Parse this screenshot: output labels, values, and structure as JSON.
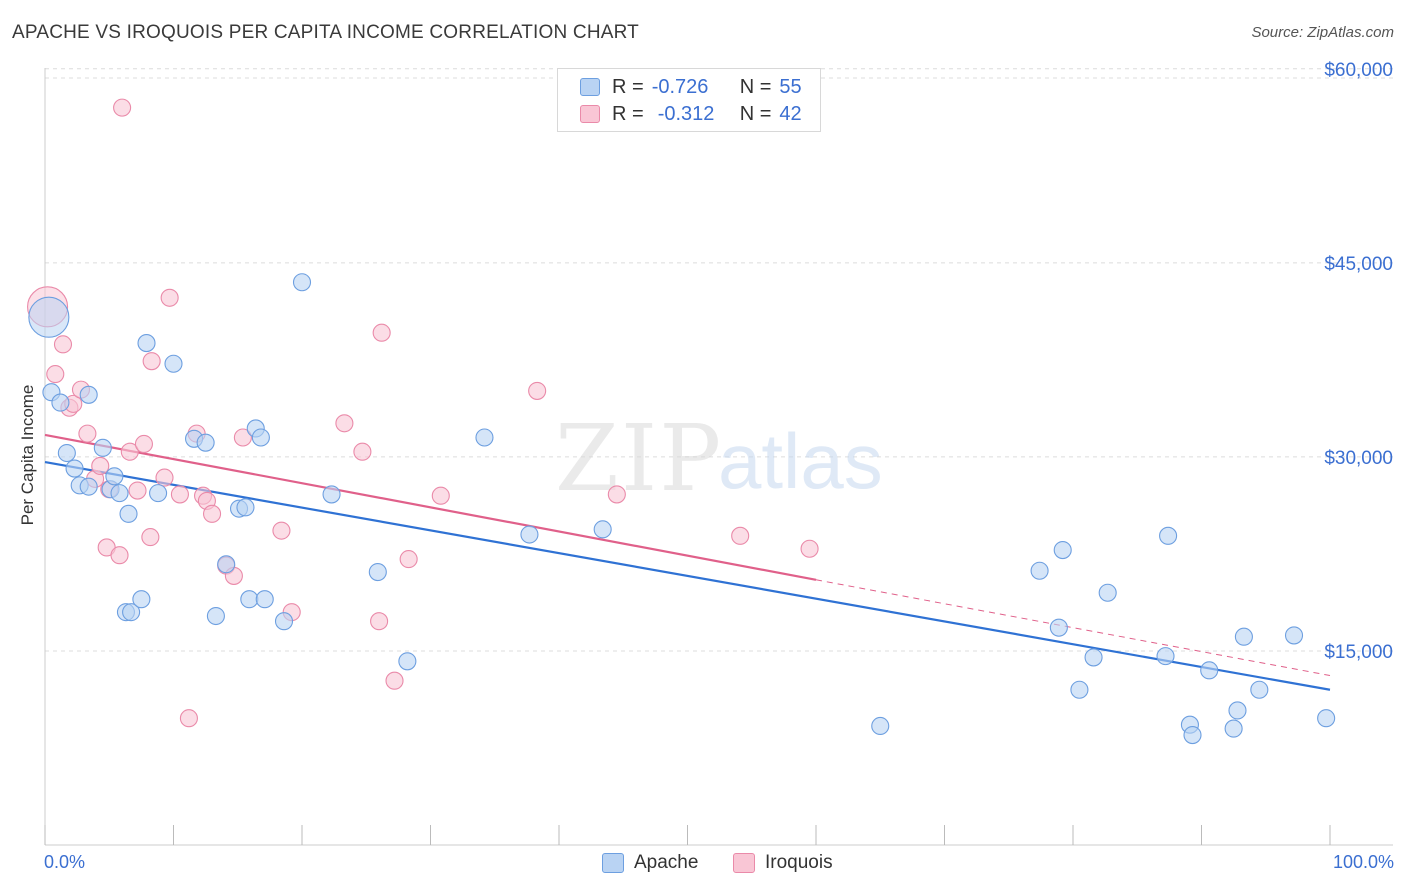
{
  "header": {
    "title": "APACHE VS IROQUOIS PER CAPITA INCOME CORRELATION CHART",
    "source": "Source: ZipAtlas.com"
  },
  "watermark": {
    "zip": "ZIP",
    "atlas": "atlas"
  },
  "colors": {
    "apache_fill": "#b9d3f3",
    "apache_stroke": "#6d9fe0",
    "apache_line": "#2f72d4",
    "iroquois_fill": "#f9c6d5",
    "iroquois_stroke": "#ea8aa9",
    "iroquois_line": "#e0608a",
    "axis_text": "#3b6fd1",
    "grid": "#dcdcdc"
  },
  "legend_top": {
    "rows": [
      {
        "r_label": "R =",
        "r_value": "-0.726",
        "n_label": "N =",
        "n_value": "55"
      },
      {
        "r_label": "R =",
        "r_value": "-0.312",
        "n_label": "N =",
        "n_value": "42"
      }
    ]
  },
  "legend_bottom": {
    "apache": "Apache",
    "iroquois": "Iroquois"
  },
  "chart_data": {
    "type": "scatter",
    "title": "APACHE VS IROQUOIS PER CAPITA INCOME CORRELATION CHART",
    "xlabel": "",
    "ylabel": "Per Capita Income",
    "xlim": [
      0,
      100
    ],
    "ylim": [
      0,
      63000
    ],
    "x_tick_labels": [
      "0.0%",
      "100.0%"
    ],
    "y_ticks": [
      15000,
      30000,
      45000,
      60000
    ],
    "y_tick_labels": [
      "$15,000",
      "$30,000",
      "$45,000",
      "$60,000"
    ],
    "grid": true,
    "legend_position": "top-center",
    "series": [
      {
        "name": "Apache",
        "r": -0.726,
        "n": 55,
        "trend": {
          "x": [
            0,
            100
          ],
          "y": [
            29600,
            12000
          ]
        },
        "points": [
          [
            0.3,
            40800
          ],
          [
            0.5,
            35000
          ],
          [
            1.2,
            34200
          ],
          [
            1.7,
            30300
          ],
          [
            2.3,
            29100
          ],
          [
            2.7,
            27800
          ],
          [
            3.4,
            27700
          ],
          [
            3.4,
            34800
          ],
          [
            4.5,
            30700
          ],
          [
            5.1,
            27500
          ],
          [
            5.4,
            28500
          ],
          [
            5.8,
            27200
          ],
          [
            6.3,
            18000
          ],
          [
            6.5,
            25600
          ],
          [
            6.7,
            18000
          ],
          [
            7.5,
            19000
          ],
          [
            7.9,
            38800
          ],
          [
            8.8,
            27200
          ],
          [
            10.0,
            37200
          ],
          [
            11.6,
            31400
          ],
          [
            12.5,
            31100
          ],
          [
            13.3,
            17700
          ],
          [
            14.1,
            21700
          ],
          [
            15.1,
            26000
          ],
          [
            15.6,
            26100
          ],
          [
            15.9,
            19000
          ],
          [
            16.4,
            32200
          ],
          [
            16.8,
            31500
          ],
          [
            17.1,
            19000
          ],
          [
            18.6,
            17300
          ],
          [
            20.0,
            43500
          ],
          [
            22.3,
            27100
          ],
          [
            25.9,
            21100
          ],
          [
            28.2,
            14200
          ],
          [
            34.2,
            31500
          ],
          [
            37.7,
            24000
          ],
          [
            43.4,
            24400
          ],
          [
            65.0,
            9200
          ],
          [
            77.4,
            21200
          ],
          [
            78.9,
            16800
          ],
          [
            79.2,
            22800
          ],
          [
            80.5,
            12000
          ],
          [
            81.6,
            14500
          ],
          [
            82.7,
            19500
          ],
          [
            87.2,
            14600
          ],
          [
            87.4,
            23900
          ],
          [
            89.1,
            9300
          ],
          [
            89.3,
            8500
          ],
          [
            90.6,
            13500
          ],
          [
            92.5,
            9000
          ],
          [
            92.8,
            10400
          ],
          [
            93.3,
            16100
          ],
          [
            94.5,
            12000
          ],
          [
            97.2,
            16200
          ],
          [
            99.7,
            9800
          ]
        ]
      },
      {
        "name": "Iroquois",
        "r": -0.312,
        "n": 42,
        "trend": {
          "x": [
            0,
            60
          ],
          "y": [
            31700,
            20500
          ]
        },
        "trend_dashed": {
          "x": [
            60,
            100
          ],
          "y": [
            20500,
            13100
          ]
        },
        "points": [
          [
            0.2,
            41600
          ],
          [
            0.8,
            36400
          ],
          [
            1.4,
            38700
          ],
          [
            1.9,
            33800
          ],
          [
            2.2,
            34100
          ],
          [
            2.8,
            35200
          ],
          [
            3.3,
            31800
          ],
          [
            3.9,
            28300
          ],
          [
            4.3,
            29300
          ],
          [
            4.8,
            23000
          ],
          [
            5.0,
            27500
          ],
          [
            5.8,
            22400
          ],
          [
            6.0,
            57000
          ],
          [
            6.6,
            30400
          ],
          [
            7.2,
            27400
          ],
          [
            7.7,
            31000
          ],
          [
            8.3,
            37400
          ],
          [
            8.2,
            23800
          ],
          [
            9.3,
            28400
          ],
          [
            9.7,
            42300
          ],
          [
            10.5,
            27100
          ],
          [
            11.2,
            9800
          ],
          [
            11.8,
            31800
          ],
          [
            12.3,
            27000
          ],
          [
            12.6,
            26600
          ],
          [
            13.0,
            25600
          ],
          [
            14.1,
            21600
          ],
          [
            14.7,
            20800
          ],
          [
            15.4,
            31500
          ],
          [
            18.4,
            24300
          ],
          [
            19.2,
            18000
          ],
          [
            23.3,
            32600
          ],
          [
            24.7,
            30400
          ],
          [
            26.0,
            17300
          ],
          [
            26.2,
            39600
          ],
          [
            27.2,
            12700
          ],
          [
            28.3,
            22100
          ],
          [
            30.8,
            27000
          ],
          [
            38.3,
            35100
          ],
          [
            44.5,
            27100
          ],
          [
            54.1,
            23900
          ],
          [
            59.5,
            22900
          ]
        ]
      }
    ]
  }
}
